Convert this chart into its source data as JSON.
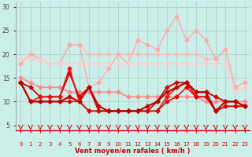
{
  "xlabel": "Vent moyen/en rafales ( km/h )",
  "xlim": [
    -0.5,
    23.5
  ],
  "ylim": [
    4,
    31
  ],
  "yticks": [
    5,
    10,
    15,
    20,
    25,
    30
  ],
  "xticks": [
    0,
    1,
    2,
    3,
    4,
    5,
    6,
    7,
    8,
    9,
    10,
    11,
    12,
    13,
    14,
    15,
    16,
    17,
    18,
    19,
    20,
    21,
    22,
    23
  ],
  "background_color": "#cceee8",
  "grid_color": "#aacccc",
  "series": [
    {
      "x": [
        0,
        1,
        2,
        3,
        4,
        5,
        6,
        7,
        8,
        9,
        10,
        11,
        12,
        13,
        14,
        15,
        16,
        17,
        18,
        19,
        20,
        21,
        22,
        23
      ],
      "y": [
        18,
        20,
        19,
        18,
        18,
        22,
        22,
        20,
        20,
        20,
        20,
        20,
        20,
        20,
        20,
        20,
        20,
        20,
        20,
        19,
        19,
        21,
        13,
        14
      ],
      "color": "#ffbbbb",
      "lw": 1.0,
      "marker": "D",
      "ms": 2.5,
      "zorder": 2
    },
    {
      "x": [
        0,
        1,
        2,
        3,
        4,
        5,
        6,
        7,
        8,
        9,
        10,
        11,
        12,
        13,
        14,
        15,
        16,
        17,
        18,
        19,
        20,
        21,
        22,
        23
      ],
      "y": [
        18,
        20,
        19,
        18,
        18,
        22,
        22,
        13,
        14,
        17,
        20,
        18,
        23,
        22,
        21,
        25,
        28,
        23,
        25,
        23,
        19,
        21,
        13,
        14
      ],
      "color": "#ffaaaa",
      "lw": 1.0,
      "marker": "D",
      "ms": 2.5,
      "zorder": 2
    },
    {
      "x": [
        0,
        1,
        2,
        3,
        4,
        5,
        6,
        7,
        8,
        9,
        10,
        11,
        12,
        13,
        14,
        15,
        16,
        17,
        18,
        19,
        20,
        21,
        22,
        23
      ],
      "y": [
        19,
        19,
        19,
        18,
        18,
        18,
        18,
        18,
        18,
        18,
        18,
        18,
        18,
        18,
        18,
        18,
        18,
        18,
        18,
        18,
        18,
        18,
        12,
        13
      ],
      "color": "#ffcccc",
      "lw": 1.2,
      "marker": "D",
      "ms": 2.5,
      "zorder": 2
    },
    {
      "x": [
        0,
        1,
        2,
        3,
        4,
        5,
        6,
        7,
        8,
        9,
        10,
        11,
        12,
        13,
        14,
        15,
        16,
        17,
        18,
        19,
        20,
        21,
        22,
        23
      ],
      "y": [
        15,
        14,
        13,
        13,
        13,
        12,
        12,
        12,
        12,
        12,
        12,
        11,
        11,
        11,
        11,
        11,
        11,
        11,
        11,
        10,
        10,
        10,
        10,
        10
      ],
      "color": "#ff8888",
      "lw": 1.2,
      "marker": "D",
      "ms": 2.5,
      "zorder": 2
    },
    {
      "x": [
        0,
        1,
        2,
        3,
        4,
        5,
        6,
        7,
        8,
        9,
        10,
        11,
        12,
        13,
        14,
        15,
        16,
        17,
        18,
        19,
        20,
        21,
        22,
        23
      ],
      "y": [
        14,
        13,
        11,
        11,
        11,
        16,
        11,
        13,
        8,
        8,
        8,
        8,
        8,
        8,
        10,
        13,
        14,
        14,
        12,
        12,
        11,
        10,
        10,
        9
      ],
      "color": "#cc0000",
      "lw": 1.3,
      "marker": "D",
      "ms": 2.5,
      "zorder": 3
    },
    {
      "x": [
        0,
        1,
        2,
        3,
        4,
        5,
        6,
        7,
        8,
        9,
        10,
        11,
        12,
        13,
        14,
        15,
        16,
        17,
        18,
        19,
        20,
        21,
        22,
        23
      ],
      "y": [
        14,
        10,
        11,
        11,
        11,
        17,
        10,
        8,
        8,
        8,
        8,
        8,
        8,
        8,
        8,
        11,
        13,
        14,
        11,
        11,
        8,
        9,
        9,
        9
      ],
      "color": "#ee1111",
      "lw": 1.2,
      "marker": "D",
      "ms": 2.5,
      "zorder": 3
    },
    {
      "x": [
        0,
        1,
        2,
        3,
        4,
        5,
        6,
        7,
        8,
        9,
        10,
        11,
        12,
        13,
        14,
        15,
        16,
        17,
        18,
        19,
        20,
        21,
        22,
        23
      ],
      "y": [
        14,
        10,
        10,
        10,
        10,
        10,
        10,
        8,
        8,
        8,
        8,
        8,
        8,
        8,
        8,
        10,
        11,
        13,
        11,
        11,
        8,
        9,
        9,
        9
      ],
      "color": "#dd0000",
      "lw": 1.1,
      "marker": "D",
      "ms": 2.5,
      "zorder": 3
    },
    {
      "x": [
        0,
        1,
        2,
        3,
        4,
        5,
        6,
        7,
        8,
        9,
        10,
        11,
        12,
        13,
        14,
        15,
        16,
        17,
        18,
        19,
        20,
        21,
        22,
        23
      ],
      "y": [
        14,
        10,
        10,
        10,
        10,
        11,
        10,
        13,
        9,
        8,
        8,
        8,
        8,
        9,
        10,
        12,
        13,
        14,
        12,
        12,
        8,
        10,
        10,
        9
      ],
      "color": "#bb0000",
      "lw": 1.5,
      "marker": "D",
      "ms": 2.5,
      "zorder": 3
    }
  ],
  "wind_arrows": [
    0,
    1,
    2,
    3,
    4,
    5,
    6,
    7,
    8,
    9,
    10,
    11,
    12,
    13,
    14,
    15,
    16,
    17,
    18,
    19,
    20,
    21,
    22,
    23
  ],
  "arrow_color": "#cc0000",
  "xlabel_color": "#cc0000"
}
